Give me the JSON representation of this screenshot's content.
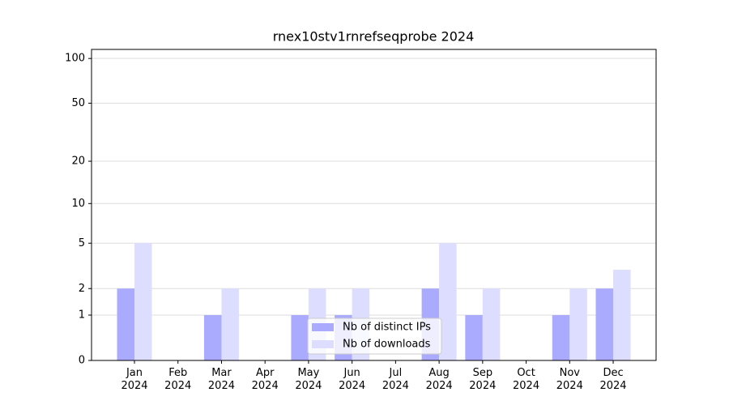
{
  "chart_data": {
    "type": "bar",
    "title": "rnex10stv1rnrefseqprobe 2024",
    "categories": [
      "Jan\n2024",
      "Feb\n2024",
      "Mar\n2024",
      "Apr\n2024",
      "May\n2024",
      "Jun\n2024",
      "Jul\n2024",
      "Aug\n2024",
      "Sep\n2024",
      "Oct\n2024",
      "Nov\n2024",
      "Dec\n2024"
    ],
    "series": [
      {
        "name": "Nb of distinct IPs",
        "color": "#aaaaff",
        "values": [
          2,
          0,
          1,
          0,
          1,
          1,
          0,
          2,
          1,
          0,
          1,
          2
        ]
      },
      {
        "name": "Nb of downloads",
        "color": "#ddddff",
        "values": [
          5,
          0,
          2,
          0,
          2,
          2,
          0,
          5,
          2,
          0,
          2,
          3
        ]
      }
    ],
    "yscale": "symlog",
    "ylim": [
      0,
      115
    ],
    "yticks": [
      0,
      1,
      2,
      5,
      10,
      20,
      50,
      100
    ],
    "grid": true,
    "legend": "lower center"
  }
}
